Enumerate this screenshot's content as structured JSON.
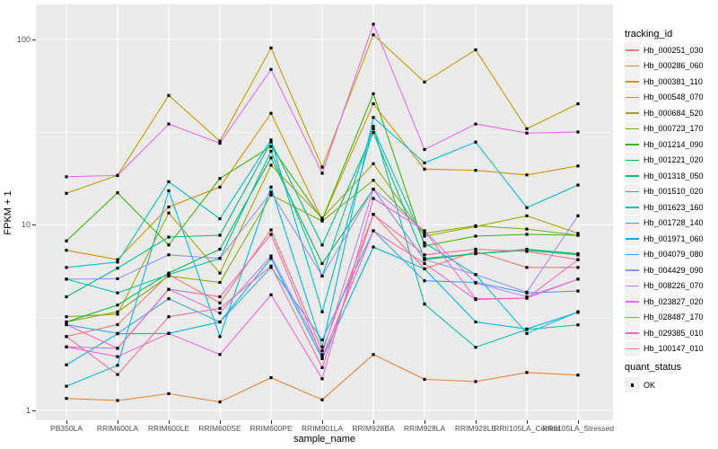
{
  "figure": {
    "y_axis_title": "FPKM + 1",
    "x_axis_title": "sample_name",
    "legend": {
      "tracking_title": "tracking_id",
      "quant_title": "quant_status",
      "quant_items": [
        {
          "label": "OK"
        }
      ]
    }
  },
  "colors": {
    "panel_bg": "#EBEBEB",
    "grid": "#FFFFFF",
    "axis_text": "#4D4D4D",
    "tick": "#333333",
    "point": "#000000",
    "legend_key_bg": "#F2F2F2"
  },
  "chart_data": {
    "type": "line",
    "title": "",
    "xlabel": "sample_name",
    "ylabel": "FPKM + 1",
    "y_scale": "log10",
    "ylim": [
      0.88,
      150
    ],
    "y_ticks": [
      1,
      10,
      100
    ],
    "y_tick_labels": [
      "1",
      "10",
      "100"
    ],
    "y_minor_ticks": [
      3.1623,
      31.623
    ],
    "grid": true,
    "legend_position": "right",
    "point_shape": "black-filled-square",
    "quant_status_value": "OK",
    "categories": [
      "PB350LA",
      "RRIM600LA",
      "RRIM600LE",
      "RRIM600SE",
      "RRIM600PE",
      "RRIM901LA",
      "RRIM928BA",
      "RRIM928LA",
      "RRIM928LE",
      "RRII105LA_Control",
      "RRII105LA_Stressed"
    ],
    "series": [
      {
        "name": "Hb_000251_030",
        "color": "#F8766D",
        "values": [
          2.5,
          2.9,
          5.4,
          3.8,
          9.4,
          2.1,
          11.4,
          5.8,
          7.2,
          5.9,
          5.9
        ]
      },
      {
        "name": "Hb_000286_060",
        "color": "#EA8331",
        "values": [
          1.16,
          1.13,
          1.23,
          1.11,
          1.5,
          1.14,
          2.0,
          1.47,
          1.43,
          1.6,
          1.55
        ]
      },
      {
        "name": "Hb_000381_110",
        "color": "#D89000",
        "values": [
          7.3,
          6.5,
          12.5,
          16.0,
          40.0,
          10.7,
          45.0,
          20.0,
          19.7,
          18.6,
          20.8
        ]
      },
      {
        "name": "Hb_000548_070",
        "color": "#C09B00",
        "values": [
          14.8,
          18.5,
          50.0,
          28.3,
          90.0,
          20.5,
          106.0,
          59.0,
          88.0,
          33.0,
          45.0
        ]
      },
      {
        "name": "Hb_000684_520",
        "color": "#A3A500",
        "values": [
          3.2,
          3.3,
          11.6,
          5.5,
          21.0,
          10.9,
          21.4,
          8.7,
          9.8,
          11.2,
          9.0
        ]
      },
      {
        "name": "Hb_000723_170",
        "color": "#7CAE00",
        "values": [
          3.0,
          3.4,
          5.3,
          4.9,
          14.5,
          10.5,
          17.4,
          9.0,
          9.9,
          9.5,
          8.8
        ]
      },
      {
        "name": "Hb_001214_090",
        "color": "#39B600",
        "values": [
          8.2,
          14.9,
          7.8,
          17.8,
          26.5,
          10.7,
          51.0,
          7.7,
          8.7,
          8.9,
          8.8
        ]
      },
      {
        "name": "Hb_001221_020",
        "color": "#00BB4E",
        "values": [
          3.0,
          3.7,
          5.5,
          7.4,
          23.0,
          6.2,
          15.6,
          6.5,
          7.0,
          7.3,
          6.9
        ]
      },
      {
        "name": "Hb_001318_050",
        "color": "#00BF7D",
        "values": [
          4.1,
          5.85,
          8.6,
          8.8,
          28.0,
          7.8,
          31.5,
          6.6,
          7.0,
          7.4,
          7.0
        ]
      },
      {
        "name": "Hb_001510_020",
        "color": "#00C1A3",
        "values": [
          5.1,
          4.3,
          5.4,
          6.6,
          25.0,
          5.3,
          34.0,
          3.74,
          2.19,
          2.73,
          2.89
        ]
      },
      {
        "name": "Hb_001623_160",
        "color": "#00BFC4",
        "values": [
          5.9,
          6.3,
          17.1,
          10.8,
          28.7,
          3.4,
          33.0,
          8.0,
          5.4,
          2.6,
          3.4
        ]
      },
      {
        "name": "Hb_001728_140",
        "color": "#00BAE0",
        "values": [
          1.35,
          1.75,
          15.3,
          2.5,
          16.0,
          2.2,
          38.0,
          21.6,
          28.0,
          12.4,
          16.4
        ]
      },
      {
        "name": "Hb_001971_060",
        "color": "#00B0F6",
        "values": [
          1.76,
          2.59,
          2.6,
          3.0,
          6.6,
          1.9,
          7.6,
          5.8,
          3.0,
          2.75,
          3.38
        ]
      },
      {
        "name": "Hb_004079_080",
        "color": "#35A2FF",
        "values": [
          2.9,
          2.6,
          4.0,
          3.0,
          5.9,
          2.4,
          9.3,
          5.0,
          4.9,
          4.3,
          4.4
        ]
      },
      {
        "name": "Hb_004429_090",
        "color": "#9590FF",
        "values": [
          5.1,
          5.13,
          6.9,
          6.6,
          15.0,
          5.3,
          15.6,
          6.5,
          5.4,
          4.34,
          11.2
        ]
      },
      {
        "name": "Hb_008226_070",
        "color": "#C77CFF",
        "values": [
          2.2,
          2.16,
          4.5,
          3.35,
          6.8,
          2.0,
          15.6,
          9.3,
          4.86,
          4.1,
          5.1
        ]
      },
      {
        "name": "Hb_023827_020",
        "color": "#E76BF3",
        "values": [
          18.2,
          18.5,
          35.0,
          27.6,
          69.0,
          19.0,
          121.0,
          25.5,
          35.0,
          31.3,
          31.7
        ]
      },
      {
        "name": "Hb_028487_170",
        "color": "#FA62DB",
        "values": [
          2.2,
          1.95,
          2.6,
          2.0,
          4.2,
          1.48,
          13.9,
          9.3,
          4.0,
          4.03,
          5.1
        ]
      },
      {
        "name": "Hb_029385_010",
        "color": "#FF62BC",
        "values": [
          2.9,
          2.16,
          4.5,
          4.1,
          8.9,
          1.93,
          9.3,
          6.2,
          3.96,
          4.03,
          6.5
        ]
      },
      {
        "name": "Hb_100147_010",
        "color": "#FF6A98",
        "values": [
          2.5,
          1.56,
          3.2,
          3.55,
          6.0,
          1.7,
          11.4,
          6.9,
          7.4,
          7.2,
          6.5
        ]
      }
    ]
  }
}
